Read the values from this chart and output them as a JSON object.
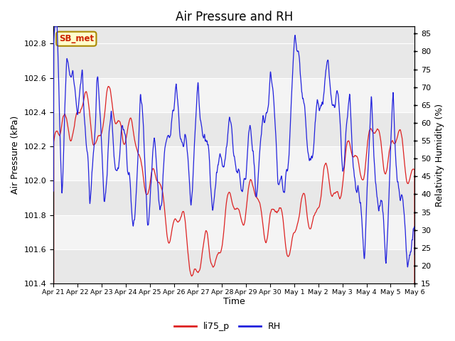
{
  "title": "Air Pressure and RH",
  "xlabel": "Time",
  "ylabel_left": "Air Pressure (kPa)",
  "ylabel_right": "Relativity Humidity (%)",
  "ylim_left": [
    101.4,
    102.9
  ],
  "ylim_right": [
    15,
    87
  ],
  "yticks_left": [
    101.4,
    101.6,
    101.8,
    102.0,
    102.2,
    102.4,
    102.6,
    102.8
  ],
  "yticks_right": [
    15,
    20,
    25,
    30,
    35,
    40,
    45,
    50,
    55,
    60,
    65,
    70,
    75,
    80,
    85
  ],
  "xtick_labels": [
    "Apr 21",
    "Apr 22",
    "Apr 23",
    "Apr 24",
    "Apr 25",
    "Apr 26",
    "Apr 27",
    "Apr 28",
    "Apr 29",
    "Apr 30",
    "May 1",
    "May 2",
    "May 3",
    "May 4",
    "May 5",
    "May 6"
  ],
  "color_pressure": "#dd2222",
  "color_rh": "#2222dd",
  "label_pressure": "li75_p",
  "label_rh": "RH",
  "station_label": "SB_met",
  "station_label_color": "#cc2200",
  "station_box_color": "#ffffcc",
  "station_box_edge": "#aa8800",
  "bg_light": "#e8e8e8",
  "bg_dark": "#d0d0d0",
  "grid_color": "#ffffff",
  "title_fontsize": 12,
  "axis_fontsize": 9,
  "tick_fontsize": 8,
  "n_days": 15
}
